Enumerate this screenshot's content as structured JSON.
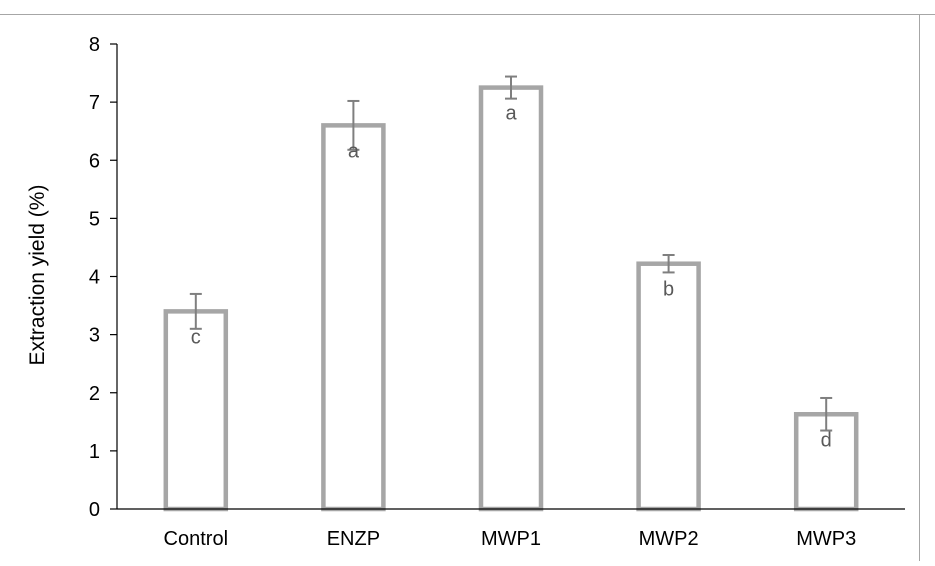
{
  "chart_data": {
    "type": "bar",
    "categories": [
      "Control",
      "ENZP",
      "MWP1",
      "MWP2",
      "MWP3"
    ],
    "values": [
      3.4,
      6.6,
      7.25,
      4.22,
      1.63
    ],
    "error": [
      0.3,
      0.42,
      0.19,
      0.15,
      0.28
    ],
    "letters": [
      "c",
      "a",
      "a",
      "b",
      "d"
    ],
    "title": "",
    "xlabel": "",
    "ylabel": "Extraction yield  (%)",
    "ylim": [
      0,
      8
    ],
    "yticks": [
      0,
      1,
      2,
      3,
      4,
      5,
      6,
      7,
      8
    ],
    "grid": false,
    "legend": "none",
    "colors": {
      "bar_fill": "#ffffff",
      "bar_stroke": "#a6a6a6",
      "error_bar": "#7f7f7f",
      "axis": "#000000",
      "letter_text": "#595959",
      "label_text": "#000000",
      "frame_border": "#a6a6a6"
    }
  }
}
